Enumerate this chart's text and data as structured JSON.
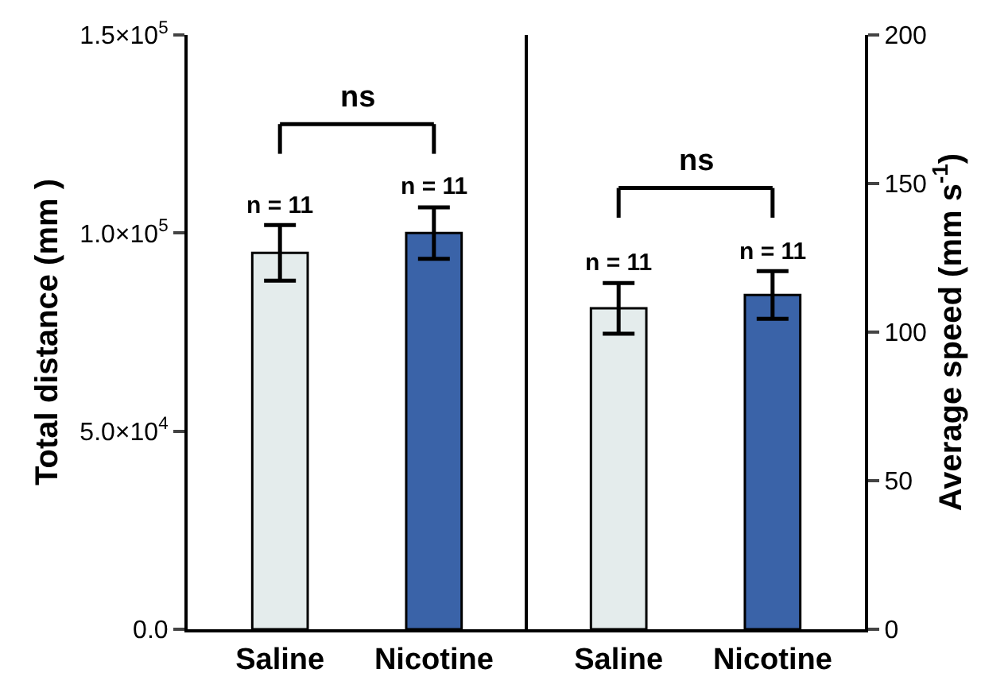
{
  "chart_data": [
    {
      "type": "bar",
      "categories": [
        "Saline",
        "Nicotine"
      ],
      "values": [
        95000,
        100000
      ],
      "colors": [
        "#e4ecec",
        "#3a63a8"
      ],
      "errors": [
        7000,
        6500
      ],
      "ylabel": "Total distance (mm )",
      "ylim": [
        0,
        150000
      ],
      "yticks": [
        {
          "value": 0,
          "label": "0.0"
        },
        {
          "value": 50000,
          "label": "5.0×10$^{4}$"
        },
        {
          "value": 100000,
          "label": "1.0×10$^{5}$"
        },
        {
          "value": 150000,
          "label": "1.5×10$^{5}$"
        }
      ],
      "annotations": [
        {
          "text": "n = 11",
          "x": "Saline",
          "y": 102000
        },
        {
          "text": "n = 11",
          "x": "Nicotine",
          "y": 106500
        },
        "ns"
      ]
    },
    {
      "type": "bar",
      "categories": [
        "Saline",
        "Nicotine"
      ],
      "series": [
        {
          "axis": "y2",
          "values": [
            108,
            112.5
          ],
          "colors": [
            "#e4ecec",
            "#3a63a8"
          ],
          "errors": [
            8.5,
            8
          ]
        }
      ],
      "y2label": "Average speed (mm s$^{-1}$)",
      "y2lim": [
        0,
        200
      ],
      "y2ticks": [
        0,
        50,
        100,
        150,
        200
      ],
      "annotations": [
        "n = 11",
        "n = 11",
        "ns"
      ]
    }
  ]
}
